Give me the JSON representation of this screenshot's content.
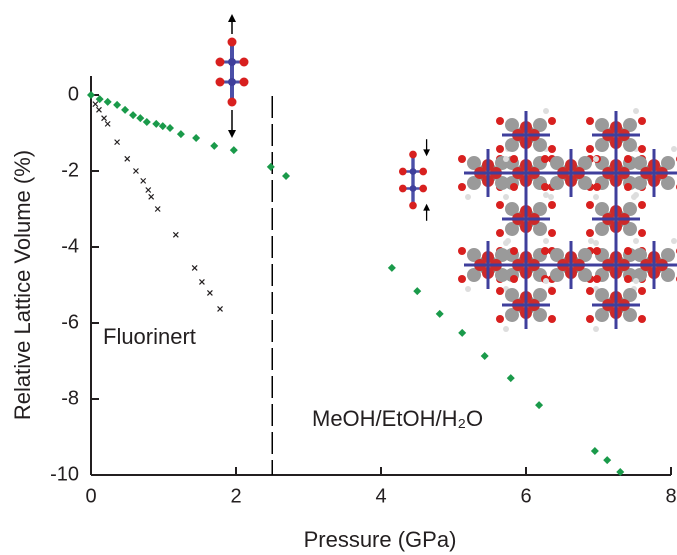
{
  "chart_data": {
    "type": "scatter",
    "x_label": "Pressure (GPa)",
    "y_label": "Relative Lattice Volume (%)",
    "xlim": [
      0,
      8
    ],
    "ylim": [
      -10,
      0.5
    ],
    "xticks": [
      0,
      2,
      4,
      6,
      8
    ],
    "yticks": [
      0,
      -2,
      -4,
      -6,
      -8,
      -10
    ],
    "vline": 2.5,
    "series": [
      {
        "name": "MeOH/EtOH/H₂O",
        "color": "#1a9a4a",
        "marker": "diamond",
        "x": [
          0,
          0.12,
          0.23,
          0.36,
          0.47,
          0.58,
          0.68,
          0.77,
          0.9,
          0.99,
          1.09,
          1.24,
          1.45,
          1.7,
          1.97,
          2.48,
          2.69,
          4.15,
          4.5,
          4.81,
          5.12,
          5.43,
          5.79,
          6.18,
          6.95,
          7.12,
          7.3
        ],
        "values": [
          0,
          -0.11,
          -0.18,
          -0.26,
          -0.39,
          -0.53,
          -0.61,
          -0.71,
          -0.76,
          -0.82,
          -0.87,
          -1.03,
          -1.13,
          -1.34,
          -1.45,
          -1.89,
          -2.13,
          -4.55,
          -5.16,
          -5.76,
          -6.26,
          -6.87,
          -7.45,
          -8.16,
          -9.37,
          -9.61,
          -9.92
        ]
      },
      {
        "name": "Fluorinert",
        "color": "#231f20",
        "marker": "x",
        "x": [
          0.06,
          0.11,
          0.18,
          0.23,
          0.36,
          0.5,
          0.62,
          0.72,
          0.79,
          0.83,
          0.92,
          1.17,
          1.43,
          1.53,
          1.64,
          1.78
        ],
        "values": [
          -0.24,
          -0.39,
          -0.61,
          -0.76,
          -1.24,
          -1.68,
          -2.0,
          -2.26,
          -2.5,
          -2.68,
          -3.0,
          -3.68,
          -4.55,
          -4.92,
          -5.21,
          -5.63
        ]
      }
    ]
  }
}
